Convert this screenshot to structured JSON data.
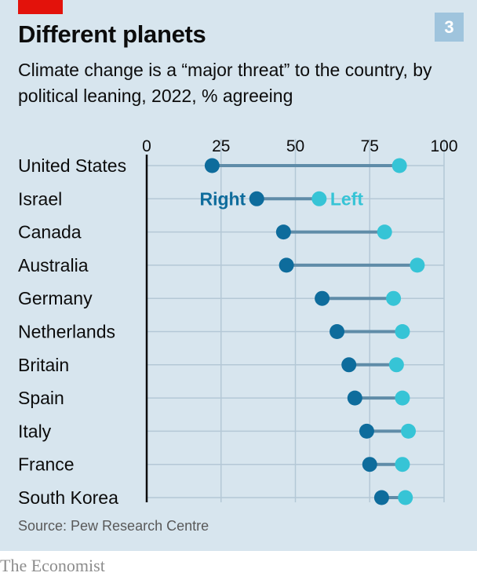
{
  "header": {
    "title": "Different planets",
    "subtitle": "Climate change is a “major threat” to the country, by political leaning, 2022, % agreeing",
    "badge": "3"
  },
  "footer": {
    "source": "Source: Pew Research Centre",
    "brand": "The Economist"
  },
  "colors": {
    "right": "#0e6c9c",
    "left": "#36c4d6",
    "connector": "#5f8ca8",
    "gridline": "#b4c8d6",
    "axis": "#0c0c0c",
    "background": "#d7e5ee"
  },
  "chart_data": {
    "type": "dumbbell",
    "xlim": [
      0,
      100
    ],
    "xticks": [
      0,
      25,
      50,
      75,
      100
    ],
    "grid": true,
    "categories": [
      "United States",
      "Israel",
      "Canada",
      "Australia",
      "Germany",
      "Netherlands",
      "Britain",
      "Spain",
      "Italy",
      "France",
      "South Korea"
    ],
    "series": [
      {
        "name": "Right",
        "values": [
          22,
          37,
          46,
          47,
          59,
          64,
          68,
          70,
          74,
          75,
          79
        ]
      },
      {
        "name": "Left",
        "values": [
          85,
          58,
          80,
          91,
          83,
          86,
          84,
          86,
          88,
          86,
          87
        ]
      }
    ],
    "legend_row": 1
  }
}
